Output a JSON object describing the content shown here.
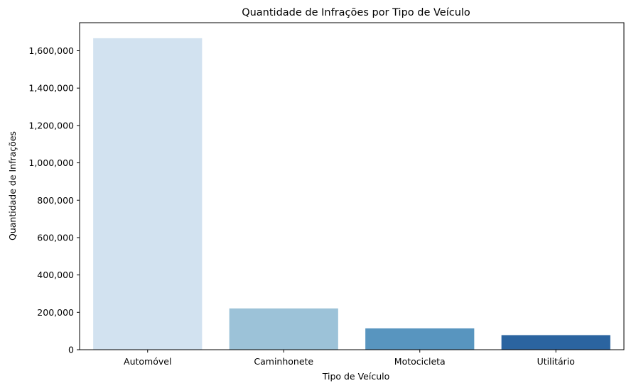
{
  "chart_data": {
    "type": "bar",
    "title": "Quantidade de Infrações por Tipo de Veículo",
    "xlabel": "Tipo de Veículo",
    "ylabel": "Quantidade de Infrações",
    "categories": [
      "Automóvel",
      "Caminhonete",
      "Motocicleta",
      "Utilitário"
    ],
    "values": [
      1667000,
      221000,
      114000,
      78000
    ],
    "colors": [
      "#d2e2f0",
      "#9cc2d8",
      "#5895bf",
      "#2b64a0"
    ],
    "ylim": [
      0,
      1750000
    ],
    "yticks": [
      0,
      200000,
      400000,
      600000,
      800000,
      1000000,
      1200000,
      1400000,
      1600000
    ],
    "ytick_labels": [
      "0",
      "200,000",
      "400,000",
      "600,000",
      "800,000",
      "1,000,000",
      "1,200,000",
      "1,400,000",
      "1,600,000"
    ],
    "grid": false,
    "legend": "none"
  }
}
